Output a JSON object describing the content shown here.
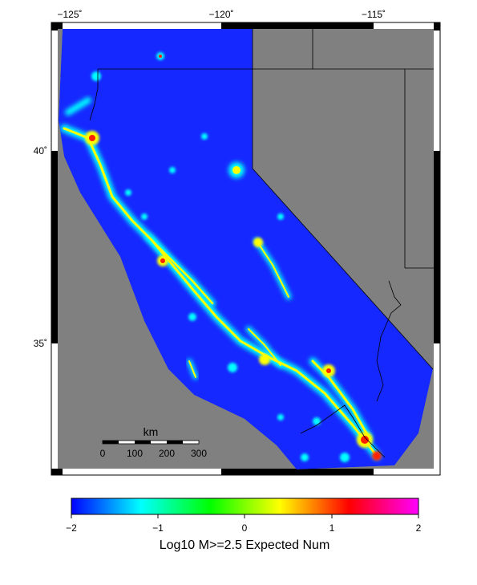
{
  "map": {
    "longitude_ticks": [
      "−125˚",
      "−120˚",
      "−115˚"
    ],
    "latitude_ticks": [
      "40˚",
      "35˚"
    ],
    "scale_bar": {
      "unit": "km",
      "ticks": [
        "0",
        "100",
        "200",
        "300"
      ]
    },
    "colors": {
      "no_data": "#808080",
      "background_field": "#1428ff",
      "hotspot_low": "#00e0ff",
      "hotspot_mid": "#ffff00",
      "hotspot_high": "#ff2000"
    }
  },
  "colorbar": {
    "title": "Log10 M>=2.5 Expected Num",
    "ticks": [
      "−2",
      "−1",
      "0",
      "1",
      "2"
    ],
    "range": [
      -2,
      2
    ],
    "stops": [
      "#0000ff",
      "#00ffff",
      "#00ff00",
      "#ffff00",
      "#ff0000",
      "#ff00ff"
    ]
  }
}
